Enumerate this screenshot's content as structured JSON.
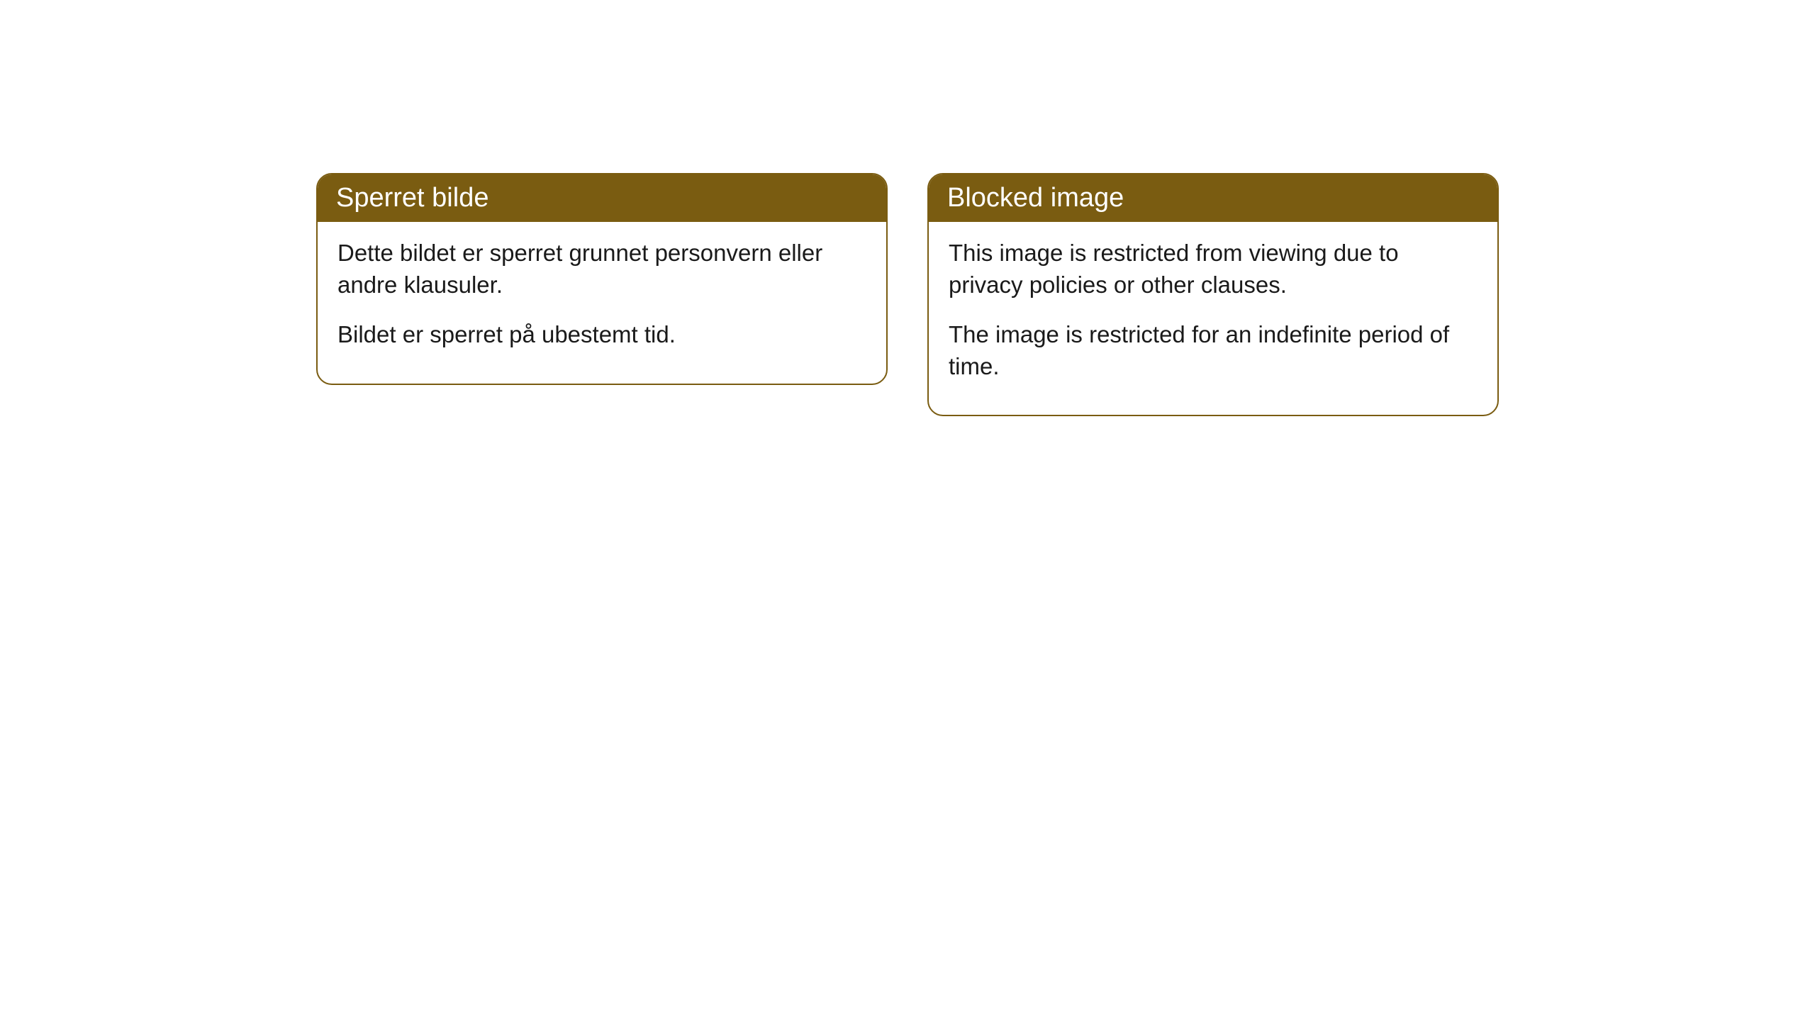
{
  "cards": [
    {
      "title": "Sperret bilde",
      "paragraph1": "Dette bildet er sperret grunnet personvern eller andre klausuler.",
      "paragraph2": "Bildet er sperret på ubestemt tid."
    },
    {
      "title": "Blocked image",
      "paragraph1": "This image is restricted from viewing due to privacy policies or other clauses.",
      "paragraph2": "The image is restricted for an indefinite period of time."
    }
  ],
  "style": {
    "header_bg": "#7a5c11",
    "header_text_color": "#ffffff",
    "border_color": "#7a5c11",
    "body_bg": "#ffffff",
    "body_text_color": "#1a1a1a",
    "border_radius": 22,
    "title_fontsize": 38,
    "body_fontsize": 33
  }
}
